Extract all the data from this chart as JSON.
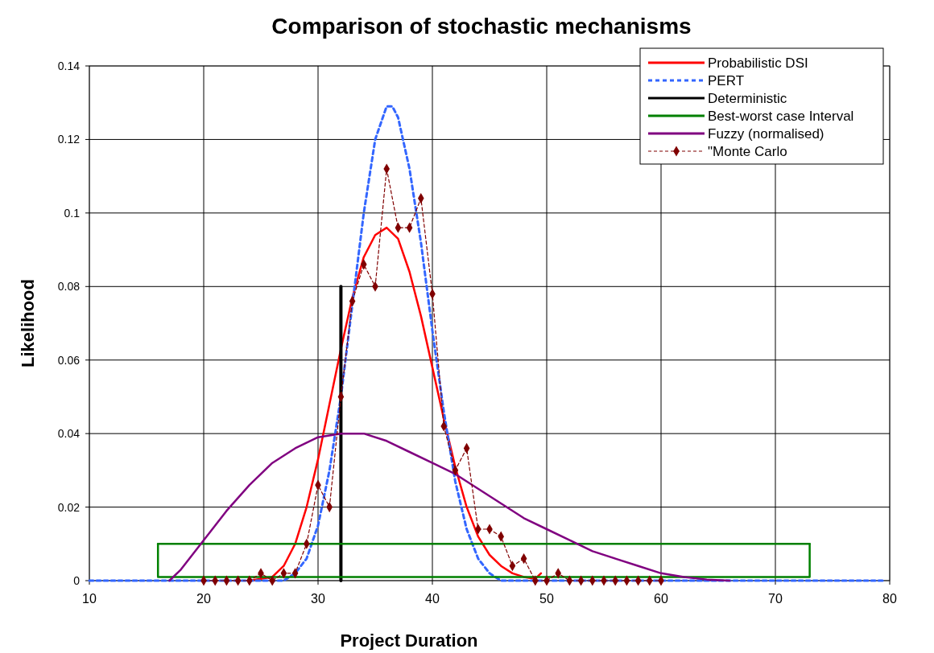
{
  "chart_data": {
    "type": "line",
    "title": "Comparison of stochastic mechanisms",
    "xlabel": "Project Duration",
    "ylabel": "Likelihood",
    "xlim": [
      10,
      80
    ],
    "xticks": [
      10,
      20,
      30,
      40,
      50,
      60,
      70,
      80
    ],
    "ylim": [
      0,
      0.14
    ],
    "yticks": [
      0,
      0.02,
      0.04,
      0.06,
      0.08,
      0.1,
      0.12,
      0.14
    ],
    "grid": true,
    "legend": "top right",
    "series": [
      {
        "name": "Probabilistic DSI",
        "color": "#ff0000",
        "line_style": "solid",
        "x": [
          24,
          26,
          27,
          28,
          29,
          30,
          31,
          32,
          33,
          34,
          35,
          36,
          37,
          38,
          39,
          40,
          41,
          42,
          43,
          44,
          45,
          46,
          47,
          48,
          49,
          49.5
        ],
        "values": [
          0,
          0.001,
          0.004,
          0.01,
          0.02,
          0.033,
          0.048,
          0.063,
          0.077,
          0.088,
          0.094,
          0.096,
          0.093,
          0.084,
          0.072,
          0.058,
          0.044,
          0.031,
          0.02,
          0.012,
          0.007,
          0.004,
          0.002,
          0.001,
          0.0005,
          0.002
        ]
      },
      {
        "name": "PERT",
        "color": "#3366ff",
        "line_style": "dotted",
        "x": [
          10,
          27,
          28,
          29,
          30,
          31,
          32,
          33,
          34,
          35,
          36,
          36.5,
          37,
          38,
          39,
          40,
          41,
          42,
          43,
          44,
          45,
          46,
          79.5
        ],
        "values": [
          0,
          0,
          0.002,
          0.006,
          0.015,
          0.03,
          0.05,
          0.075,
          0.1,
          0.12,
          0.129,
          0.129,
          0.126,
          0.112,
          0.092,
          0.068,
          0.046,
          0.027,
          0.014,
          0.006,
          0.002,
          0,
          0
        ]
      },
      {
        "name": "Deterministic",
        "color": "#000000",
        "line_style": "solid",
        "x": [
          32,
          32
        ],
        "values": [
          0,
          0.08
        ]
      },
      {
        "name": "Best-worst case Interval",
        "color": "#008000",
        "line_style": "solid",
        "x": [
          16,
          16,
          73,
          73
        ],
        "values": [
          0.01,
          0.001,
          0.001,
          0.01
        ]
      },
      {
        "color": "#008000",
        "line_style": "solid",
        "x": [
          16,
          73
        ],
        "values": [
          0.01,
          0.01
        ]
      },
      {
        "name": "Fuzzy (normalised)",
        "color": "#800080",
        "line_style": "solid",
        "x": [
          17,
          18,
          20,
          22,
          24,
          26,
          28,
          30,
          32,
          34,
          36,
          38,
          40,
          42,
          44,
          46,
          48,
          50,
          52,
          54,
          56,
          58,
          60,
          62,
          64,
          66
        ],
        "values": [
          0,
          0.003,
          0.011,
          0.019,
          0.026,
          0.032,
          0.036,
          0.039,
          0.04,
          0.04,
          0.038,
          0.035,
          0.032,
          0.029,
          0.025,
          0.021,
          0.017,
          0.014,
          0.011,
          0.008,
          0.006,
          0.004,
          0.002,
          0.001,
          0.0003,
          0
        ]
      },
      {
        "name": "\"Monte Carlo",
        "color": "#800000",
        "line_style": "dashed",
        "marker": "diamond",
        "x": [
          20,
          21,
          22,
          23,
          24,
          25,
          26,
          27,
          28,
          29,
          30,
          31,
          32,
          33,
          34,
          35,
          36,
          37,
          38,
          39,
          40,
          41,
          42,
          43,
          44,
          45,
          46,
          47,
          48,
          49,
          50,
          51,
          52,
          53,
          54,
          55,
          56,
          57,
          58,
          59,
          60
        ],
        "values": [
          0,
          0,
          0,
          0,
          0,
          0.002,
          0,
          0.002,
          0.002,
          0.01,
          0.026,
          0.02,
          0.05,
          0.076,
          0.086,
          0.08,
          0.112,
          0.096,
          0.096,
          0.104,
          0.078,
          0.042,
          0.03,
          0.036,
          0.014,
          0.014,
          0.012,
          0.004,
          0.006,
          0,
          0,
          0.002,
          0,
          0,
          0,
          0,
          0,
          0,
          0,
          0,
          0
        ]
      }
    ]
  }
}
